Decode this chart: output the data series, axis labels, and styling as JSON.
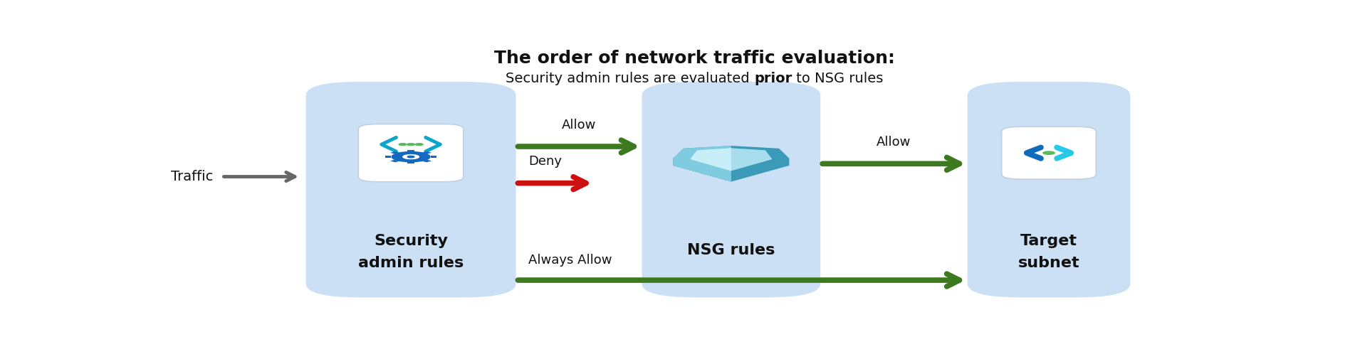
{
  "title_bold": "The order of network traffic evaluation:",
  "subtitle_normal": "Security admin rules are evaluated ",
  "subtitle_bold": "prior",
  "subtitle_after": " to NSG rules",
  "bg_color": "#ffffff",
  "box_color": "#cce0f5",
  "icon_bg_color": "#ffffff",
  "green_arrow_color": "#3d7a1f",
  "red_arrow_color": "#cc1111",
  "gray_arrow_color": "#666666",
  "text_color": "#111111",
  "label_allow1": "Allow",
  "label_deny": "Deny",
  "label_allow2": "Allow",
  "label_always_allow": "Always Allow",
  "label_traffic": "Traffic",
  "label_box1_line1": "Security",
  "label_box1_line2": "admin rules",
  "label_box2": "NSG rules",
  "label_box3_line1": "Target",
  "label_box3_line2": "subnet",
  "figw": 19.03,
  "figh": 5.05,
  "dpi": 100
}
